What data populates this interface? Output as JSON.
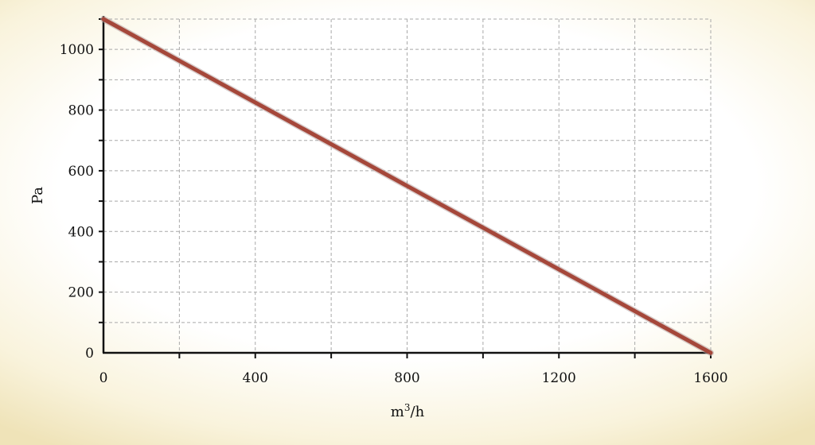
{
  "chart_data": {
    "type": "line",
    "title": "",
    "xlabel": "m",
    "xlabel_sup": "3",
    "xlabel_suffix": "/h",
    "ylabel": "Pa",
    "xlim": [
      0,
      1600
    ],
    "ylim": [
      0,
      1100
    ],
    "xticks": [
      0,
      400,
      800,
      1200,
      1600
    ],
    "yticks": [
      0,
      200,
      400,
      600,
      800,
      1000
    ],
    "x_minor_step": 200,
    "y_minor_step": 100,
    "grid": true,
    "series": [
      {
        "x": [
          0,
          1600
        ],
        "y": [
          1100,
          0
        ],
        "color": "#a5473a"
      }
    ]
  }
}
